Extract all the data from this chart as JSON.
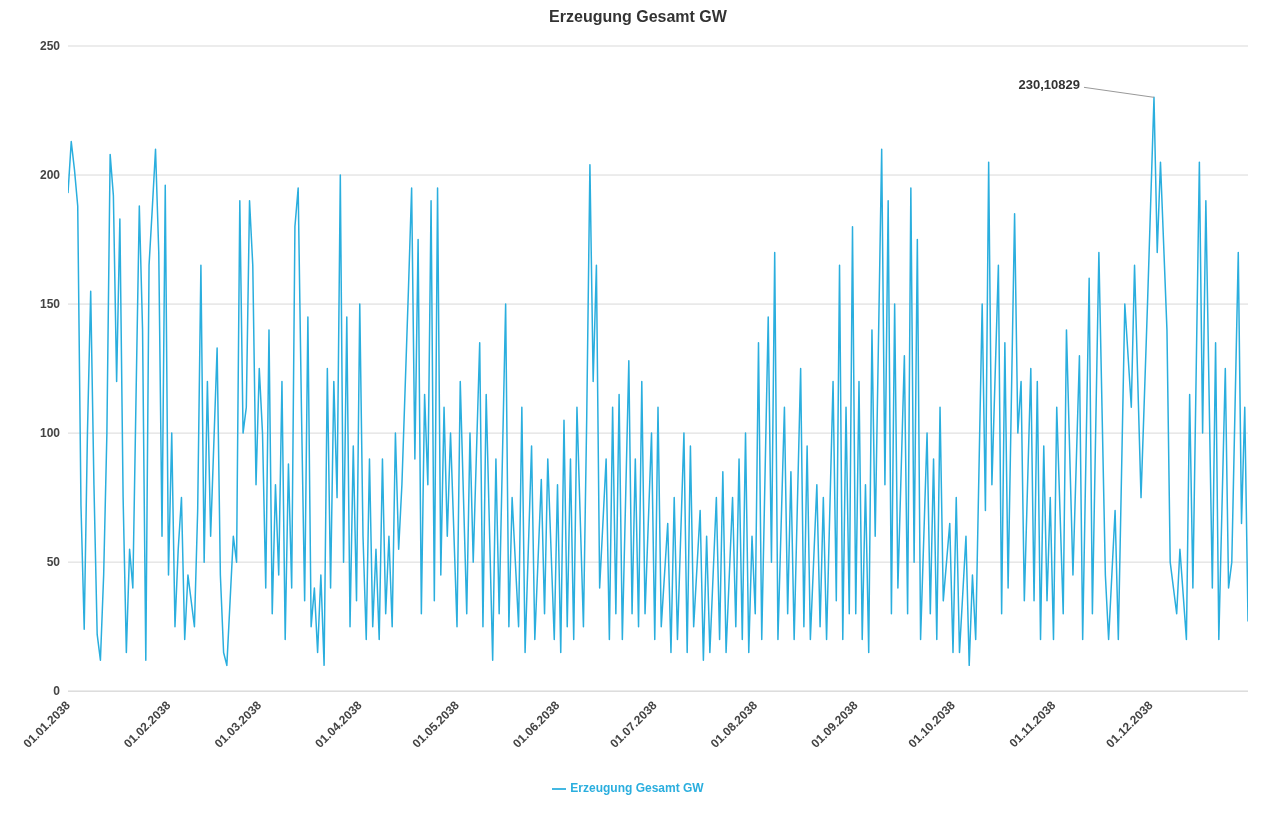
{
  "chart_data": {
    "type": "line",
    "title": "Erzeugung Gesamt GW",
    "x": [
      "2038-01-01",
      "2038-01-02",
      "2038-01-03",
      "2038-01-04",
      "2038-01-05",
      "2038-01-06",
      "2038-01-07",
      "2038-01-08",
      "2038-01-09",
      "2038-01-10",
      "2038-01-11",
      "2038-01-12",
      "2038-01-13",
      "2038-01-14",
      "2038-01-15",
      "2038-01-16",
      "2038-01-17",
      "2038-01-18",
      "2038-01-19",
      "2038-01-20",
      "2038-01-21",
      "2038-01-22",
      "2038-01-23",
      "2038-01-24",
      "2038-01-25",
      "2038-01-26",
      "2038-01-27",
      "2038-01-28",
      "2038-01-29",
      "2038-01-30",
      "2038-01-31",
      "2038-02-01",
      "2038-02-02",
      "2038-02-03",
      "2038-02-04",
      "2038-02-05",
      "2038-02-06",
      "2038-02-07",
      "2038-02-09",
      "2038-02-10",
      "2038-02-11",
      "2038-02-12",
      "2038-02-13",
      "2038-02-14",
      "2038-02-16",
      "2038-02-17",
      "2038-02-18",
      "2038-02-19",
      "2038-02-20",
      "2038-02-21",
      "2038-02-22",
      "2038-02-23",
      "2038-02-24",
      "2038-02-25",
      "2038-02-26",
      "2038-02-27",
      "2038-02-28",
      "2038-03-01",
      "2038-03-02",
      "2038-03-03",
      "2038-03-04",
      "2038-03-05",
      "2038-03-06",
      "2038-03-07",
      "2038-03-08",
      "2038-03-09",
      "2038-03-10",
      "2038-03-11",
      "2038-03-12",
      "2038-03-13",
      "2038-03-14",
      "2038-03-15",
      "2038-03-16",
      "2038-03-17",
      "2038-03-18",
      "2038-03-19",
      "2038-03-20",
      "2038-03-21",
      "2038-03-22",
      "2038-03-23",
      "2038-03-24",
      "2038-03-25",
      "2038-03-26",
      "2038-03-27",
      "2038-03-28",
      "2038-03-29",
      "2038-03-30",
      "2038-03-31",
      "2038-04-01",
      "2038-04-02",
      "2038-04-03",
      "2038-04-04",
      "2038-04-05",
      "2038-04-06",
      "2038-04-07",
      "2038-04-08",
      "2038-04-09",
      "2038-04-10",
      "2038-04-11",
      "2038-04-12",
      "2038-04-13",
      "2038-04-14",
      "2038-04-16",
      "2038-04-17",
      "2038-04-18",
      "2038-04-19",
      "2038-04-20",
      "2038-04-21",
      "2038-04-22",
      "2038-04-23",
      "2038-04-24",
      "2038-04-25",
      "2038-04-26",
      "2038-04-27",
      "2038-04-28",
      "2038-04-29",
      "2038-05-01",
      "2038-05-02",
      "2038-05-04",
      "2038-05-05",
      "2038-05-06",
      "2038-05-08",
      "2038-05-09",
      "2038-05-10",
      "2038-05-12",
      "2038-05-13",
      "2038-05-14",
      "2038-05-16",
      "2038-05-17",
      "2038-05-18",
      "2038-05-20",
      "2038-05-21",
      "2038-05-22",
      "2038-05-24",
      "2038-05-25",
      "2038-05-27",
      "2038-05-28",
      "2038-05-29",
      "2038-05-31",
      "2038-06-01",
      "2038-06-02",
      "2038-06-03",
      "2038-06-04",
      "2038-06-05",
      "2038-06-06",
      "2038-06-07",
      "2038-06-09",
      "2038-06-10",
      "2038-06-11",
      "2038-06-12",
      "2038-06-13",
      "2038-06-14",
      "2038-06-16",
      "2038-06-17",
      "2038-06-18",
      "2038-06-19",
      "2038-06-20",
      "2038-06-21",
      "2038-06-23",
      "2038-06-24",
      "2038-06-25",
      "2038-06-26",
      "2038-06-27",
      "2038-06-28",
      "2038-06-30",
      "2038-07-01",
      "2038-07-02",
      "2038-07-03",
      "2038-07-05",
      "2038-07-06",
      "2038-07-07",
      "2038-07-08",
      "2038-07-10",
      "2038-07-11",
      "2038-07-12",
      "2038-07-13",
      "2038-07-15",
      "2038-07-16",
      "2038-07-17",
      "2038-07-18",
      "2038-07-20",
      "2038-07-21",
      "2038-07-22",
      "2038-07-23",
      "2038-07-25",
      "2038-07-26",
      "2038-07-27",
      "2038-07-28",
      "2038-07-29",
      "2038-07-30",
      "2038-07-31",
      "2038-08-01",
      "2038-08-02",
      "2038-08-03",
      "2038-08-05",
      "2038-08-06",
      "2038-08-07",
      "2038-08-08",
      "2038-08-10",
      "2038-08-11",
      "2038-08-12",
      "2038-08-13",
      "2038-08-15",
      "2038-08-16",
      "2038-08-17",
      "2038-08-18",
      "2038-08-20",
      "2038-08-21",
      "2038-08-22",
      "2038-08-23",
      "2038-08-25",
      "2038-08-26",
      "2038-08-27",
      "2038-08-28",
      "2038-08-29",
      "2038-08-30",
      "2038-08-31",
      "2038-09-01",
      "2038-09-02",
      "2038-09-03",
      "2038-09-04",
      "2038-09-05",
      "2038-09-06",
      "2038-09-07",
      "2038-09-09",
      "2038-09-10",
      "2038-09-11",
      "2038-09-12",
      "2038-09-13",
      "2038-09-14",
      "2038-09-16",
      "2038-09-17",
      "2038-09-18",
      "2038-09-19",
      "2038-09-20",
      "2038-09-21",
      "2038-09-23",
      "2038-09-24",
      "2038-09-25",
      "2038-09-26",
      "2038-09-27",
      "2038-09-28",
      "2038-09-30",
      "2038-10-01",
      "2038-10-02",
      "2038-10-03",
      "2038-10-05",
      "2038-10-06",
      "2038-10-07",
      "2038-10-08",
      "2038-10-10",
      "2038-10-11",
      "2038-10-12",
      "2038-10-13",
      "2038-10-15",
      "2038-10-16",
      "2038-10-17",
      "2038-10-18",
      "2038-10-20",
      "2038-10-21",
      "2038-10-22",
      "2038-10-23",
      "2038-10-25",
      "2038-10-26",
      "2038-10-27",
      "2038-10-28",
      "2038-10-29",
      "2038-10-30",
      "2038-10-31",
      "2038-11-01",
      "2038-11-02",
      "2038-11-04",
      "2038-11-05",
      "2038-11-07",
      "2038-11-09",
      "2038-11-10",
      "2038-11-12",
      "2038-11-13",
      "2038-11-15",
      "2038-11-17",
      "2038-11-18",
      "2038-11-20",
      "2038-11-21",
      "2038-11-23",
      "2038-11-25",
      "2038-11-26",
      "2038-11-28",
      "2038-11-30",
      "2038-12-02",
      "2038-12-03",
      "2038-12-04",
      "2038-12-06",
      "2038-12-07",
      "2038-12-09",
      "2038-12-10",
      "2038-12-12",
      "2038-12-13",
      "2038-12-14",
      "2038-12-16",
      "2038-12-17",
      "2038-12-18",
      "2038-12-20",
      "2038-12-21",
      "2038-12-22",
      "2038-12-24",
      "2038-12-25",
      "2038-12-26",
      "2038-12-28",
      "2038-12-29",
      "2038-12-30",
      "2038-12-31"
    ],
    "series": [
      {
        "name": "Erzeugung Gesamt GW",
        "color": "#2aaede",
        "values": [
          193,
          213,
          202,
          188,
          72,
          24,
          100,
          155,
          80,
          22,
          12,
          45,
          100,
          208,
          192,
          120,
          183,
          75,
          15,
          55,
          40,
          115,
          188,
          140,
          12,
          165,
          187,
          210,
          170,
          60,
          196,
          45,
          100,
          25,
          55,
          75,
          20,
          45,
          25,
          70,
          165,
          50,
          120,
          60,
          133,
          45,
          15,
          10,
          35,
          60,
          50,
          190,
          100,
          110,
          190,
          165,
          80,
          125,
          100,
          40,
          140,
          30,
          80,
          45,
          120,
          20,
          88,
          40,
          180,
          195,
          110,
          35,
          145,
          25,
          40,
          15,
          45,
          10,
          125,
          40,
          120,
          75,
          200,
          50,
          145,
          25,
          95,
          35,
          150,
          60,
          20,
          90,
          25,
          55,
          20,
          90,
          30,
          60,
          25,
          100,
          55,
          80,
          155,
          195,
          90,
          175,
          30,
          115,
          80,
          190,
          35,
          195,
          45,
          110,
          60,
          100,
          25,
          120,
          30,
          100,
          50,
          135,
          25,
          115,
          12,
          90,
          30,
          150,
          25,
          75,
          25,
          110,
          15,
          95,
          20,
          82,
          30,
          90,
          20,
          80,
          15,
          105,
          25,
          90,
          20,
          110,
          25,
          105,
          204,
          120,
          165,
          40,
          90,
          20,
          110,
          30,
          115,
          20,
          128,
          30,
          90,
          25,
          120,
          30,
          100,
          20,
          110,
          25,
          65,
          15,
          75,
          20,
          100,
          15,
          95,
          25,
          70,
          12,
          60,
          15,
          75,
          20,
          85,
          15,
          75,
          25,
          90,
          20,
          100,
          15,
          60,
          30,
          135,
          20,
          145,
          50,
          170,
          20,
          110,
          30,
          85,
          20,
          125,
          25,
          95,
          20,
          80,
          25,
          75,
          20,
          120,
          35,
          165,
          20,
          110,
          30,
          180,
          30,
          120,
          20,
          80,
          15,
          140,
          60,
          210,
          80,
          190,
          30,
          150,
          40,
          130,
          30,
          195,
          50,
          175,
          20,
          100,
          30,
          90,
          20,
          110,
          35,
          65,
          15,
          75,
          15,
          60,
          10,
          45,
          20,
          150,
          70,
          205,
          80,
          165,
          30,
          135,
          40,
          185,
          100,
          120,
          35,
          125,
          35,
          120,
          20,
          95,
          35,
          75,
          20,
          110,
          30,
          140,
          45,
          130,
          20,
          160,
          30,
          170,
          45,
          20,
          70,
          20,
          150,
          110,
          165,
          75,
          150,
          230.10829,
          170,
          205,
          140,
          50,
          30,
          55,
          20,
          115,
          40,
          205,
          100,
          190,
          40,
          135,
          20,
          125,
          40,
          50,
          170,
          65,
          110,
          27
        ]
      }
    ],
    "xlim": [
      "2038-01-01",
      "2038-12-31"
    ],
    "xticks": [
      {
        "value": "2038-01-01",
        "label": "01.01.2038"
      },
      {
        "value": "2038-02-01",
        "label": "01.02.2038"
      },
      {
        "value": "2038-03-01",
        "label": "01.03.2038"
      },
      {
        "value": "2038-04-01",
        "label": "01.04.2038"
      },
      {
        "value": "2038-05-01",
        "label": "01.05.2038"
      },
      {
        "value": "2038-06-01",
        "label": "01.06.2038"
      },
      {
        "value": "2038-07-01",
        "label": "01.07.2038"
      },
      {
        "value": "2038-08-01",
        "label": "01.08.2038"
      },
      {
        "value": "2038-09-01",
        "label": "01.09.2038"
      },
      {
        "value": "2038-10-01",
        "label": "01.10.2038"
      },
      {
        "value": "2038-11-01",
        "label": "01.11.2038"
      },
      {
        "value": "2038-12-01",
        "label": "01.12.2038"
      }
    ],
    "ylim": [
      0,
      250
    ],
    "yticks": [
      0,
      50,
      100,
      150,
      200,
      250
    ],
    "grid": "y",
    "legend": "bottom",
    "marker": "none",
    "line_style": "solid",
    "annotations": [
      {
        "text": "230,10829",
        "x": "2038-12-02",
        "y": 230.10829
      }
    ]
  }
}
